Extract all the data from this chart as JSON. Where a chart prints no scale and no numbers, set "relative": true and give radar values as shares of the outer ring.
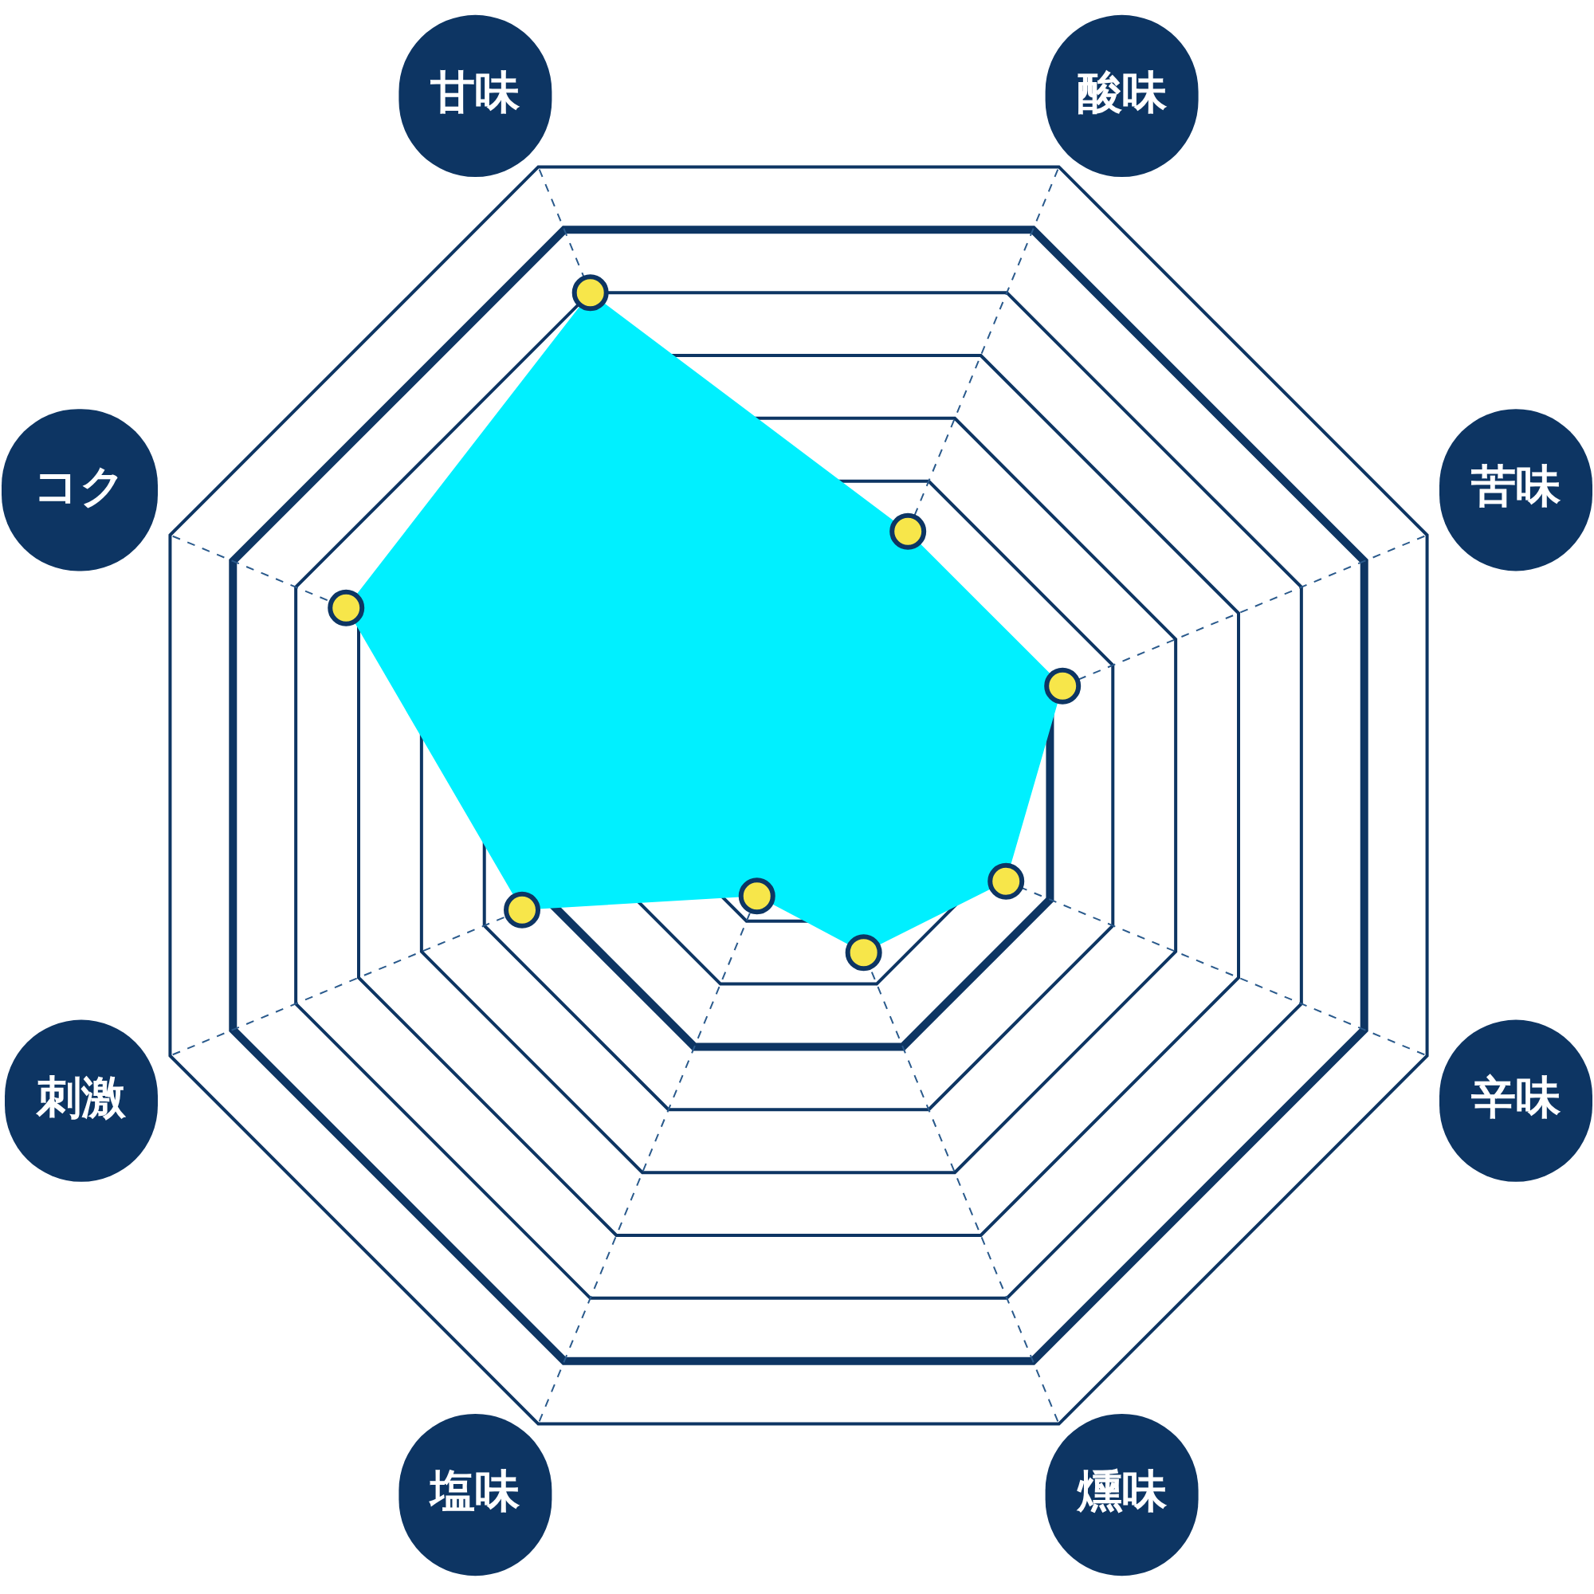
{
  "chart_data": {
    "type": "radar",
    "relative": true,
    "marker": "circle",
    "grid": true,
    "categories": [
      "甘味",
      "酸味",
      "苦味",
      "辛味",
      "燻味",
      "塩味",
      "刺激",
      "コク"
    ],
    "series": [
      {
        "color": "#00f0ff",
        "values": [
          0.8,
          0.42,
          0.42,
          0.33,
          0.25,
          0.16,
          0.44,
          0.72
        ]
      }
    ]
  }
}
